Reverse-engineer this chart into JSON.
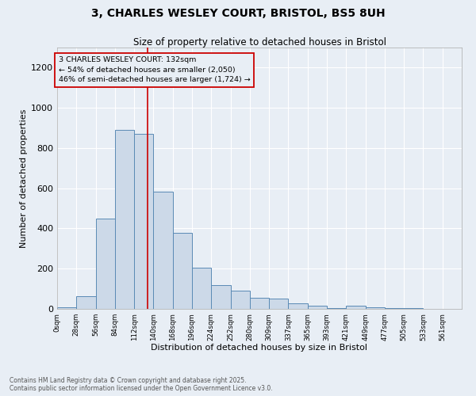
{
  "title_line1": "3, CHARLES WESLEY COURT, BRISTOL, BS5 8UH",
  "title_line2": "Size of property relative to detached houses in Bristol",
  "xlabel": "Distribution of detached houses by size in Bristol",
  "ylabel": "Number of detached properties",
  "bar_color": "#ccd9e8",
  "bar_edge_color": "#5a8ab5",
  "background_color": "#e8eef5",
  "grid_color": "#ffffff",
  "annotation_box_color": "#cc0000",
  "vline_color": "#cc0000",
  "bin_labels": [
    "0sqm",
    "28sqm",
    "56sqm",
    "84sqm",
    "112sqm",
    "140sqm",
    "168sqm",
    "196sqm",
    "224sqm",
    "252sqm",
    "280sqm",
    "309sqm",
    "337sqm",
    "365sqm",
    "393sqm",
    "421sqm",
    "449sqm",
    "477sqm",
    "505sqm",
    "533sqm",
    "561sqm"
  ],
  "bar_heights": [
    8,
    65,
    450,
    890,
    870,
    585,
    380,
    205,
    120,
    90,
    55,
    50,
    28,
    14,
    5,
    17,
    8,
    3,
    2,
    1,
    0
  ],
  "property_label": "3 CHARLES WESLEY COURT: 132sqm",
  "annotation_line2": "← 54% of detached houses are smaller (2,050)",
  "annotation_line3": "46% of semi-detached houses are larger (1,724) →",
  "vline_x": 132,
  "ylim": [
    0,
    1300
  ],
  "yticks": [
    0,
    200,
    400,
    600,
    800,
    1000,
    1200
  ],
  "bin_width": 28,
  "footnote_line1": "Contains HM Land Registry data © Crown copyright and database right 2025.",
  "footnote_line2": "Contains public sector information licensed under the Open Government Licence v3.0."
}
